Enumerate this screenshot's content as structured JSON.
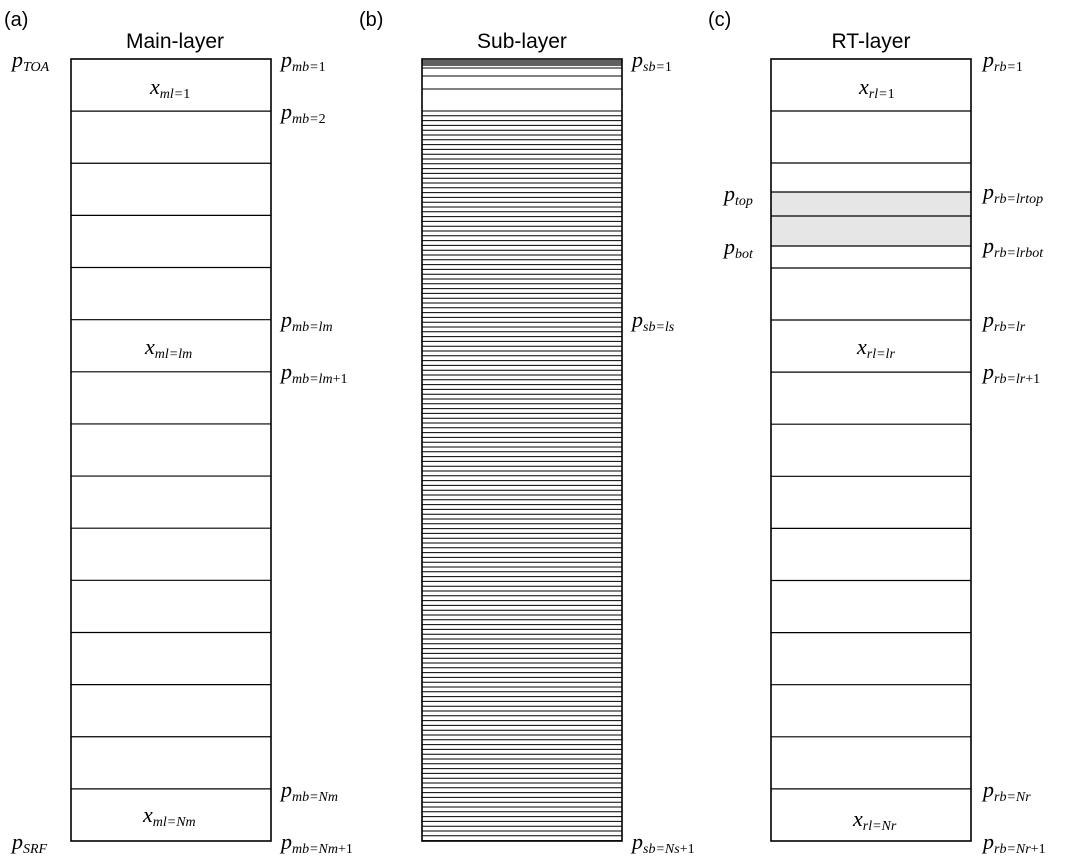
{
  "panels": {
    "main": {
      "tag": "(a)",
      "title": "Main-layer",
      "layer_count_shown": 15,
      "left_labels": {
        "top": {
          "base": "p",
          "sub": "TOA"
        },
        "bottom": {
          "base": "p",
          "sub": "SRF"
        }
      },
      "right_labels": [
        {
          "key": "mb1",
          "base": "p",
          "sub": "mb=",
          "sub_tail": "1",
          "boundary": 1
        },
        {
          "key": "mb2",
          "base": "p",
          "sub": "mb=",
          "sub_tail": "2",
          "boundary": 2
        },
        {
          "key": "mblm",
          "base": "p",
          "sub": "mb=lm",
          "sub_tail": "",
          "boundary": 6
        },
        {
          "key": "mblm1",
          "base": "p",
          "sub": "mb=lm",
          "sub_tail": "+1",
          "boundary": 7
        },
        {
          "key": "mbNm",
          "base": "p",
          "sub": "mb=Nm",
          "sub_tail": "",
          "boundary": 15
        },
        {
          "key": "mbNm1",
          "base": "p",
          "sub": "mb=Nm",
          "sub_tail": "+1",
          "boundary": 16
        }
      ],
      "cell_labels": [
        {
          "key": "ml1",
          "base": "x",
          "sub": "ml=",
          "sub_tail": "1",
          "layer": 1
        },
        {
          "key": "mllm",
          "base": "x",
          "sub": "ml=lm",
          "sub_tail": "",
          "layer": 6
        },
        {
          "key": "mlNm",
          "base": "x",
          "sub": "ml=Nm",
          "sub_tail": "",
          "layer": 15
        }
      ]
    },
    "sub": {
      "tag": "(b)",
      "title": "Sub-layer",
      "right_labels": [
        {
          "key": "sb1",
          "base": "p",
          "sub": "sb=",
          "sub_tail": "1"
        },
        {
          "key": "sbls",
          "base": "p",
          "sub": "sb=ls",
          "sub_tail": ""
        },
        {
          "key": "sbNs1",
          "base": "p",
          "sub": "sb=Ns",
          "sub_tail": "+1"
        }
      ]
    },
    "rt": {
      "tag": "(c)",
      "title": "RT-layer",
      "left_labels": [
        {
          "key": "ptop",
          "base": "p",
          "sub": "top"
        },
        {
          "key": "pbot",
          "base": "p",
          "sub": "bot"
        }
      ],
      "right_labels": [
        {
          "key": "rb1",
          "base": "p",
          "sub": "rb=",
          "sub_tail": "1"
        },
        {
          "key": "rblrtop",
          "base": "p",
          "sub": "rb=lrtop",
          "sub_tail": ""
        },
        {
          "key": "rblrbot",
          "base": "p",
          "sub": "rb=lrbot",
          "sub_tail": ""
        },
        {
          "key": "rblr",
          "base": "p",
          "sub": "rb=lr",
          "sub_tail": ""
        },
        {
          "key": "rblr1",
          "base": "p",
          "sub": "rb=lr",
          "sub_tail": "+1"
        },
        {
          "key": "rbNr",
          "base": "p",
          "sub": "rb=Nr",
          "sub_tail": ""
        },
        {
          "key": "rbNr1",
          "base": "p",
          "sub": "rb=Nr",
          "sub_tail": "+1"
        }
      ],
      "cell_labels": [
        {
          "key": "rl1",
          "base": "x",
          "sub": "rl=",
          "sub_tail": "1"
        },
        {
          "key": "rllr",
          "base": "x",
          "sub": "rl=lr",
          "sub_tail": ""
        },
        {
          "key": "rlNr",
          "base": "x",
          "sub": "rl=Nr",
          "sub_tail": ""
        }
      ]
    }
  },
  "colors": {
    "line": "#000000",
    "shade": "#e6e6e6",
    "background": "#ffffff"
  }
}
